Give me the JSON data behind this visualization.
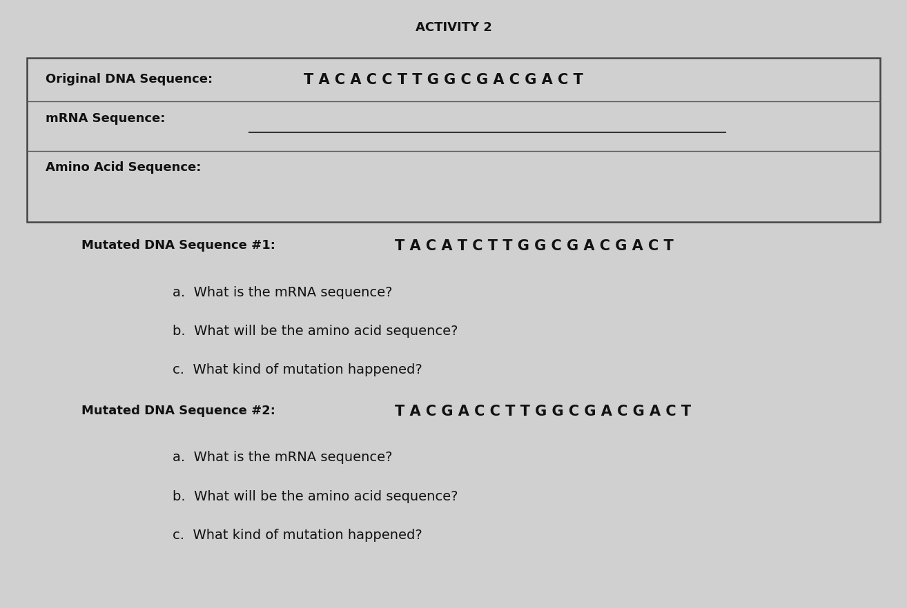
{
  "title": "ACTIVITY 2",
  "title_fontsize": 13,
  "title_fontweight": "bold",
  "bg_color": "#d0d0d0",
  "text_color": "#111111",
  "box_line1_label": "Original DNA Sequence:",
  "box_line1_seq": "T A C A C C T T G G C G A C G A C T",
  "box_line2_label": "mRNA Sequence:",
  "box_line3_label": "Amino Acid Sequence:",
  "mut1_label": "Mutated DNA Sequence #1:",
  "mut1_seq": "T A C A T C T T G G C G A C G A C T",
  "mut1_qa": "a.  What is the mRNA sequence?",
  "mut1_qb": "b.  What will be the amino acid sequence?",
  "mut1_qc": "c.  What kind of mutation happened?",
  "mut2_label": "Mutated DNA Sequence #2:",
  "mut2_seq": "T A C G A C C T T G G C G A C G A C T",
  "mut2_qa": "a.  What is the mRNA sequence?",
  "mut2_qb": "b.  What will be the amino acid sequence?",
  "mut2_qc": "c.  What kind of mutation happened?"
}
